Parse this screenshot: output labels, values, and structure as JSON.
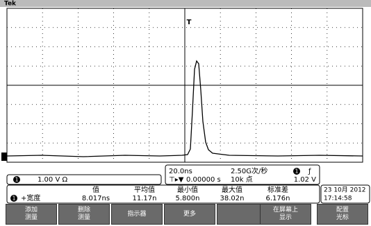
{
  "header": {
    "brand": "Tek"
  },
  "channel": {
    "number": "1",
    "scale": "1.00 V Ω"
  },
  "timebase": {
    "horizontal": "20.0ns",
    "sample_rate": "2.50G次/秒",
    "trigger_source": "1",
    "trigger_slope": "ƒ",
    "position": "0.00000 s",
    "record_length": "10k 点",
    "trigger_level": "1.02 V"
  },
  "measurements": {
    "columns": [
      "值",
      "平均值",
      "最小值",
      "最大值",
      "标准差"
    ],
    "rows": [
      {
        "source": "1",
        "name": "+宽度",
        "cells": [
          "8.017ns",
          "11.17n",
          "5.800n",
          "38.02n",
          "6.176n"
        ]
      }
    ]
  },
  "datetime": {
    "date": "23 10月 2012",
    "time": "17:14:58"
  },
  "buttons": [
    {
      "lines": [
        "添加",
        "测量"
      ]
    },
    {
      "lines": [
        "删除",
        "测量"
      ]
    },
    {
      "lines": [
        "指示器"
      ]
    },
    {
      "lines": [
        "更多"
      ]
    },
    {
      "lines": [
        "在屏幕上",
        "显示"
      ]
    },
    {
      "lines": [
        "配置",
        "光标"
      ]
    }
  ]
}
